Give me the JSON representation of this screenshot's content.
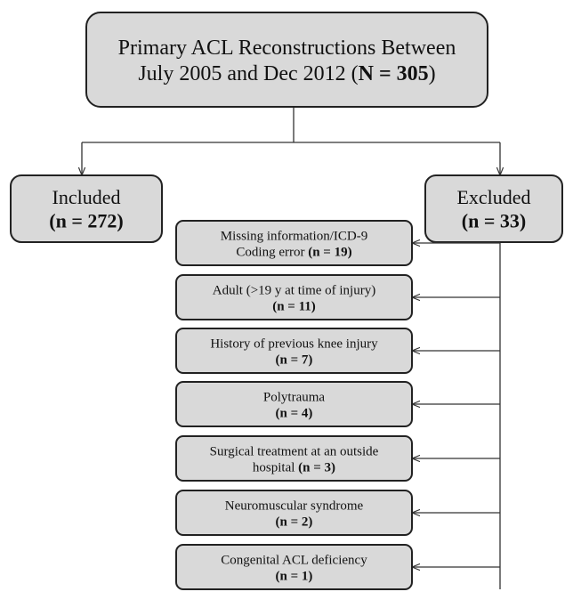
{
  "nodes": [
    {
      "lines": [
        [
          {
            "t": "Primary ACL Reconstructions Between"
          }
        ],
        [
          {
            "t": "July 2005 and Dec 2012 ("
          },
          {
            "t": "N = 305",
            "b": true
          },
          {
            "t": ")"
          }
        ]
      ]
    },
    {
      "lines": [
        [
          {
            "t": "Included"
          }
        ],
        [
          {
            "t": "(n = 272)",
            "b": true
          }
        ]
      ]
    },
    {
      "lines": [
        [
          {
            "t": "Excluded"
          }
        ],
        [
          {
            "t": "(n = 33)",
            "b": true
          }
        ]
      ]
    },
    {
      "lines": [
        [
          {
            "t": "Missing information/ICD-9"
          }
        ],
        [
          {
            "t": "Coding error"
          },
          {
            "t": "(n = 19)",
            "b": true
          }
        ]
      ]
    },
    {
      "lines": [
        [
          {
            "t": "Adult (>19 y at time of injury)"
          }
        ],
        [
          {
            "t": "(n = 11)",
            "b": true
          }
        ]
      ]
    },
    {
      "lines": [
        [
          {
            "t": "History of previous knee injury"
          }
        ],
        [
          {
            "t": "(n = 7)",
            "b": true
          }
        ]
      ]
    },
    {
      "lines": [
        [
          {
            "t": "Polytrauma"
          }
        ],
        [
          {
            "t": "(n = 4)",
            "b": true
          }
        ]
      ]
    },
    {
      "lines": [
        [
          {
            "t": "Surgical treatment at an outside"
          }
        ],
        [
          {
            "t": "hospital"
          },
          {
            "t": "(n = 3)",
            "b": true
          }
        ]
      ]
    },
    {
      "lines": [
        [
          {
            "t": "Neuromuscular syndrome"
          }
        ],
        [
          {
            "t": "(n = 2)",
            "b": true
          }
        ]
      ]
    },
    {
      "lines": [
        [
          {
            "t": "Congenital ACL deficiency"
          }
        ],
        [
          {
            "t": "(n = 1)",
            "b": true
          }
        ]
      ]
    }
  ]
}
